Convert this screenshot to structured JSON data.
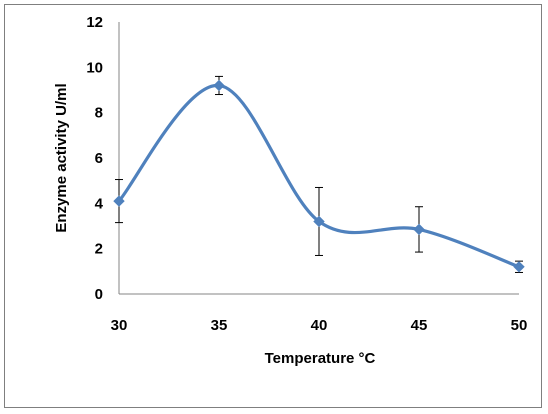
{
  "chart_data": {
    "type": "line",
    "title": "",
    "xlabel": "Temperature °C",
    "ylabel": "Enzyme activity U/ml",
    "xlim": [
      30,
      50
    ],
    "ylim": [
      0,
      12
    ],
    "x_ticks": [
      30,
      35,
      40,
      45,
      50
    ],
    "y_ticks": [
      0,
      2,
      4,
      6,
      8,
      10,
      12
    ],
    "grid": false,
    "smooth": true,
    "series": [
      {
        "x": [
          30,
          35,
          40,
          45,
          50
        ],
        "y": [
          4.1,
          9.2,
          3.2,
          2.85,
          1.2
        ],
        "error": [
          0.95,
          0.4,
          1.5,
          1.0,
          0.25
        ],
        "color": "#4f81bd",
        "marker": "diamond"
      }
    ]
  }
}
